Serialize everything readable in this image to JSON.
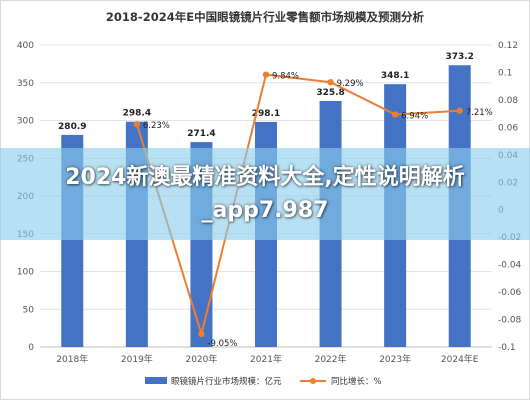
{
  "overlay": {
    "text": "2024新澳最精准资料大全,定性说明解析_app7.987"
  },
  "chart_data": {
    "type": "bar",
    "title": "2018-2024年E中国眼镜镜片行业零售额市场规模及预测分析",
    "categories": [
      "2018年",
      "2019年",
      "2020年",
      "2021年",
      "2022年",
      "2023年",
      "2024年E"
    ],
    "series": [
      {
        "name": "眼镜镜片行业市场规模：亿元",
        "type": "bar",
        "axis": "left",
        "color": "#4472C4",
        "values": [
          280.9,
          298.4,
          271.4,
          298.1,
          325.8,
          348.1,
          373.2
        ],
        "labels": [
          "280.9",
          "298.4",
          "271.4",
          "298.1",
          "325.8",
          "348.1",
          "373.2"
        ]
      },
      {
        "name": "同比增长：%",
        "type": "line",
        "axis": "right",
        "color": "#ED7D31",
        "values": [
          null,
          0.0623,
          -0.0905,
          0.0984,
          0.0929,
          0.0694,
          0.0721
        ],
        "labels": [
          "",
          "6.23%",
          "-9.05%",
          "9.84%",
          "9.29%",
          "6.94%",
          "7.21%"
        ]
      }
    ],
    "y_left": {
      "ylim": [
        0,
        400
      ],
      "ticks": [
        "0",
        "50",
        "100",
        "150",
        "200",
        "250",
        "300",
        "350",
        "400"
      ]
    },
    "y_right": {
      "ylim": [
        -0.1,
        0.12
      ],
      "ticks": [
        "-0.1",
        "-0.08",
        "-0.06",
        "-0.04",
        "-0.02",
        "0",
        "0.02",
        "0.04",
        "0.06",
        "0.08",
        "0.1",
        "0.12"
      ]
    },
    "grid": true,
    "legend": "bottom"
  }
}
